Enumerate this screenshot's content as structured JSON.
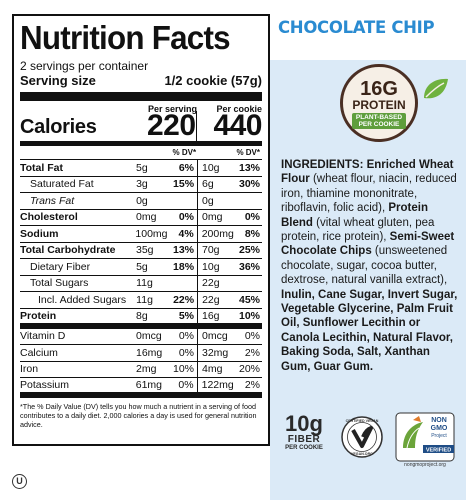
{
  "flavor": "CHOCOLATE CHIP",
  "nutrition": {
    "title": "Nutrition Facts",
    "servings": "2 servings per container",
    "serving_size_label": "Serving size",
    "serving_size_value": "1/2 cookie (57g)",
    "per_serving": "Per serving",
    "per_cookie": "Per cookie",
    "calories_label": "Calories",
    "calories_serving": "220",
    "calories_cookie": "440",
    "dv_label_1": "% DV*",
    "dv_label_2": "% DV*",
    "rows": [
      {
        "name": "Total Fat",
        "amt1": "5g",
        "pct1": "6%",
        "amt2": "10g",
        "pct2": "13%"
      },
      {
        "name": "Saturated Fat",
        "amt1": "3g",
        "pct1": "15%",
        "amt2": "6g",
        "pct2": "30%"
      },
      {
        "name": "Trans Fat",
        "amt1": "0g",
        "pct1": "",
        "amt2": "0g",
        "pct2": ""
      },
      {
        "name": "Cholesterol",
        "amt1": "0mg",
        "pct1": "0%",
        "amt2": "0mg",
        "pct2": "0%"
      },
      {
        "name": "Sodium",
        "amt1": "100mg",
        "pct1": "4%",
        "amt2": "200mg",
        "pct2": "8%"
      },
      {
        "name": "Total Carbohydrate",
        "amt1": "35g",
        "pct1": "13%",
        "amt2": "70g",
        "pct2": "25%"
      },
      {
        "name": "Dietary Fiber",
        "amt1": "5g",
        "pct1": "18%",
        "amt2": "10g",
        "pct2": "36%"
      },
      {
        "name": "Total Sugars",
        "amt1": "11g",
        "pct1": "",
        "amt2": "22g",
        "pct2": ""
      },
      {
        "name": "Incl. Added Sugars",
        "amt1": "11g",
        "pct1": "22%",
        "amt2": "22g",
        "pct2": "45%"
      },
      {
        "name": "Protein",
        "amt1": "8g",
        "pct1": "5%",
        "amt2": "16g",
        "pct2": "10%"
      },
      {
        "name": "Vitamin D",
        "amt1": "0mcg",
        "pct1": "0%",
        "amt2": "0mcg",
        "pct2": "0%"
      },
      {
        "name": "Calcium",
        "amt1": "16mg",
        "pct1": "0%",
        "amt2": "32mg",
        "pct2": "2%"
      },
      {
        "name": "Iron",
        "amt1": "2mg",
        "pct1": "10%",
        "amt2": "4mg",
        "pct2": "20%"
      },
      {
        "name": "Potassium",
        "amt1": "61mg",
        "pct1": "0%",
        "amt2": "122mg",
        "pct2": "2%"
      }
    ],
    "footnote": "*The % Daily Value (DV) tells you how much a nutrient in a serving of food contributes to a daily diet. 2,000 calories a day is used for general nutrition advice."
  },
  "badge": {
    "amount": "16G",
    "label": "PROTEIN",
    "sub_line1": "PLANT-BASED",
    "sub_line2": "PER COOKIE"
  },
  "ingredients": {
    "label": "INGREDIENTS: Enriched Wheat Flour",
    "p1": " (wheat flour, niacin, reduced iron, thiamine mononitrate, riboflavin, folic acid), ",
    "b2": "Protein Blend",
    "p2": " (vital wheat gluten, pea protein, rice protein), ",
    "b3": "Semi-Sweet Chocolate Chips",
    "p3": " (unsweetened chocolate, sugar, cocoa butter, dextrose, natural vanilla extract), ",
    "b4": "Inulin, Cane Sugar, Invert Sugar, Vegetable Glycerine, Palm Fruit Oil, Sunflower Lecithin or Canola Lecithin, Natural Flavor, Baking Soda, Salt, Xanthan Gum, Guar Gum."
  },
  "fiber": {
    "amount": "10g",
    "label": "FIBER",
    "sub": "PER COOKIE"
  },
  "vegan": {
    "top": "CERTIFIED VEGAN",
    "bottom": "VEGAN.ORG"
  },
  "nongmo": {
    "line1": "NON",
    "line2": "GMO",
    "line3": "Project",
    "line4": "VERIFIED",
    "line5": "nongmoproject.org"
  },
  "ou": "U"
}
